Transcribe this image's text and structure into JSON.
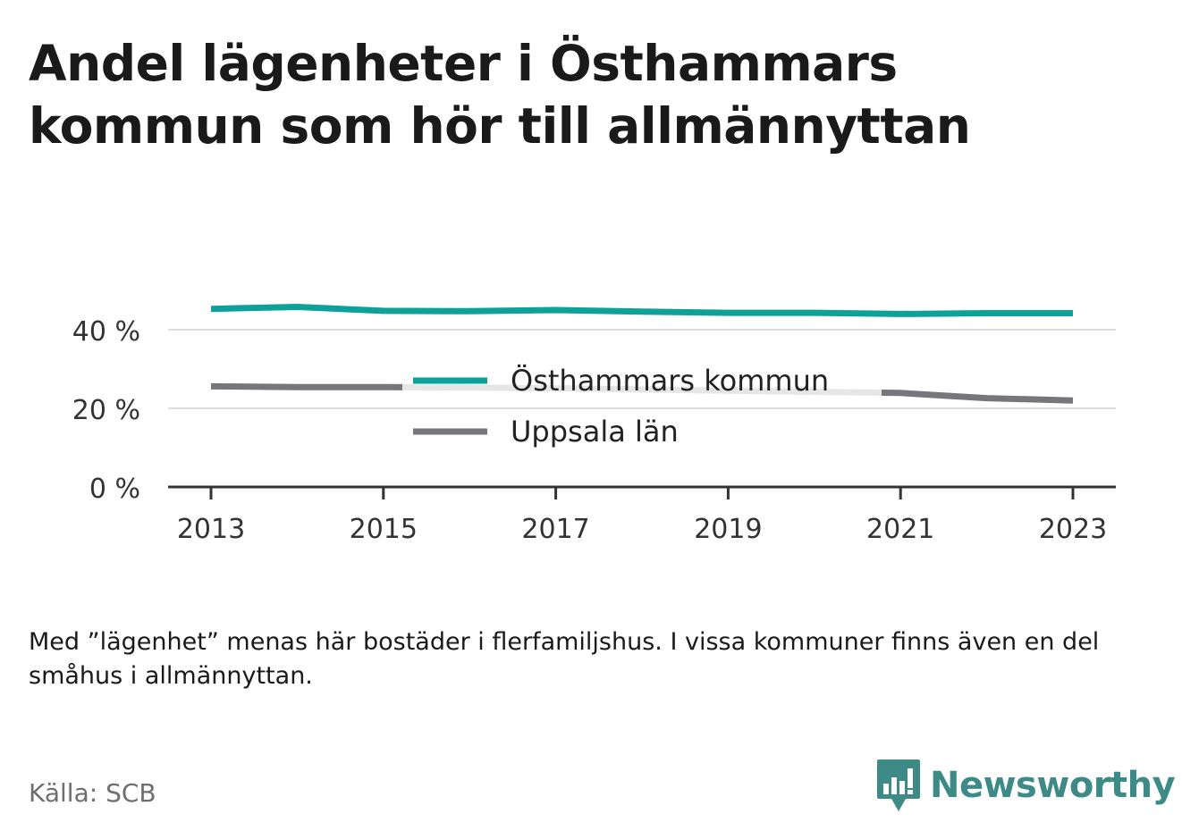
{
  "title": "Andel lägenheter i Östhammars kommun som hör till allmännyttan",
  "note": "Med ”lägenhet” menas här bostäder i flerfamiljshus. I vissa kommuner finns även en del småhus i allmännyttan.",
  "source": "Källa: SCB",
  "brand": {
    "name": "Newsworthy",
    "icon": "newsworthy-logo-icon",
    "color": "#3e8a86"
  },
  "chart_data": {
    "type": "line",
    "x": [
      2013,
      2014,
      2015,
      2016,
      2017,
      2018,
      2019,
      2020,
      2021,
      2022,
      2023
    ],
    "x_ticks": [
      "2013",
      "2015",
      "2017",
      "2019",
      "2021",
      "2023"
    ],
    "y_ticks": [
      "0 %",
      "20 %",
      "40 %"
    ],
    "y_tick_values": [
      0,
      20,
      40
    ],
    "ylim": [
      0,
      40
    ],
    "grid": true,
    "legend_position": "center",
    "series": [
      {
        "name": "Östhammars kommun",
        "color": "#0ea19a",
        "values": [
          45.3,
          45.8,
          44.8,
          44.7,
          45.0,
          44.6,
          44.3,
          44.3,
          44.0,
          44.2,
          44.2
        ]
      },
      {
        "name": "Uppsala län",
        "color": "#76767b",
        "values": [
          25.6,
          25.4,
          25.4,
          25.3,
          25.1,
          24.8,
          24.5,
          24.2,
          23.9,
          22.6,
          22.0
        ]
      }
    ]
  }
}
